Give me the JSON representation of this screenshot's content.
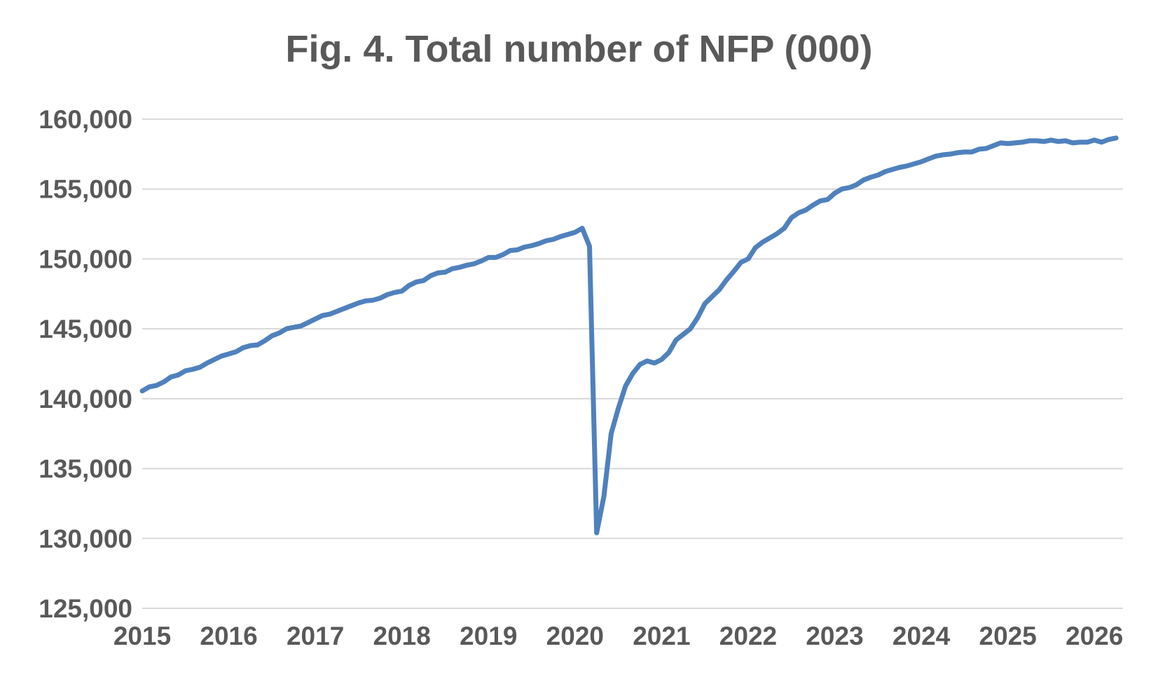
{
  "chart_data": {
    "type": "line",
    "title": "Fig. 4. Total number of NFP (000)",
    "xlabel": "",
    "ylabel": "",
    "ylim": [
      125000,
      160000
    ],
    "xlim": [
      2015,
      2026.33
    ],
    "yticks": [
      125000,
      130000,
      135000,
      140000,
      145000,
      150000,
      155000,
      160000
    ],
    "ytick_labels": [
      "125,000",
      "130,000",
      "135,000",
      "140,000",
      "145,000",
      "150,000",
      "155,000",
      "160,000"
    ],
    "xticks": [
      2015,
      2016,
      2017,
      2018,
      2019,
      2020,
      2021,
      2022,
      2023,
      2024,
      2025,
      2026
    ],
    "xtick_labels": [
      "2015",
      "2016",
      "2017",
      "2018",
      "2019",
      "2020",
      "2021",
      "2022",
      "2023",
      "2024",
      "2025",
      "2026"
    ],
    "grid": true,
    "legend": "none",
    "colors": {
      "line": "#4F81BD",
      "grid": "#D9D9D9",
      "text": "#595959"
    },
    "series": [
      {
        "x": [
          2015.0,
          2015.083,
          2015.167,
          2015.25,
          2015.333,
          2015.417,
          2015.5,
          2015.583,
          2015.667,
          2015.75,
          2015.833,
          2015.917,
          2016.0,
          2016.083,
          2016.167,
          2016.25,
          2016.333,
          2016.417,
          2016.5,
          2016.583,
          2016.667,
          2016.75,
          2016.833,
          2016.917,
          2017.0,
          2017.083,
          2017.167,
          2017.25,
          2017.333,
          2017.417,
          2017.5,
          2017.583,
          2017.667,
          2017.75,
          2017.833,
          2017.917,
          2018.0,
          2018.083,
          2018.167,
          2018.25,
          2018.333,
          2018.417,
          2018.5,
          2018.583,
          2018.667,
          2018.75,
          2018.833,
          2018.917,
          2019.0,
          2019.083,
          2019.167,
          2019.25,
          2019.333,
          2019.417,
          2019.5,
          2019.583,
          2019.667,
          2019.75,
          2019.833,
          2019.917,
          2020.0,
          2020.083,
          2020.167,
          2020.25,
          2020.333,
          2020.417,
          2020.5,
          2020.583,
          2020.667,
          2020.75,
          2020.833,
          2020.917,
          2021.0,
          2021.083,
          2021.167,
          2021.25,
          2021.333,
          2021.417,
          2021.5,
          2021.583,
          2021.667,
          2021.75,
          2021.833,
          2021.917,
          2022.0,
          2022.083,
          2022.167,
          2022.25,
          2022.333,
          2022.417,
          2022.5,
          2022.583,
          2022.667,
          2022.75,
          2022.833,
          2022.917,
          2023.0,
          2023.083,
          2023.167,
          2023.25,
          2023.333,
          2023.417,
          2023.5,
          2023.583,
          2023.667,
          2023.75,
          2023.833,
          2023.917,
          2024.0,
          2024.083,
          2024.167,
          2024.25,
          2024.333,
          2024.417,
          2024.5,
          2024.583,
          2024.667,
          2024.75,
          2024.833,
          2024.917,
          2025.0,
          2025.083,
          2025.167,
          2025.25,
          2025.333,
          2025.417,
          2025.5,
          2025.583,
          2025.667,
          2025.75,
          2025.833,
          2025.917,
          2026.0,
          2026.083,
          2026.167,
          2026.25
        ],
        "y": [
          140550,
          140850,
          140950,
          141200,
          141550,
          141700,
          142000,
          142100,
          142250,
          142550,
          142800,
          143050,
          143200,
          143350,
          143650,
          143800,
          143850,
          144150,
          144500,
          144700,
          145000,
          145100,
          145200,
          145450,
          145700,
          145950,
          146050,
          146250,
          146450,
          146650,
          146850,
          147000,
          147050,
          147200,
          147450,
          147600,
          147700,
          148100,
          148350,
          148450,
          148800,
          149000,
          149050,
          149300,
          149400,
          149550,
          149650,
          149850,
          150100,
          150100,
          150300,
          150600,
          150650,
          150850,
          150950,
          151100,
          151300,
          151400,
          151600,
          151750,
          151900,
          152200,
          150900,
          130400,
          133000,
          137500,
          139300,
          140900,
          141800,
          142450,
          142700,
          142550,
          142800,
          143300,
          144200,
          144600,
          145000,
          145800,
          146800,
          147300,
          147800,
          148500,
          149100,
          149750,
          150000,
          150800,
          151200,
          151500,
          151800,
          152200,
          152950,
          153300,
          153500,
          153850,
          154150,
          154250,
          154700,
          155000,
          155100,
          155300,
          155650,
          155850,
          156000,
          156250,
          156400,
          156550,
          156650,
          156800,
          156950,
          157150,
          157350,
          157450,
          157500,
          157600,
          157650,
          157650,
          157850,
          157900,
          158100,
          158300,
          158250,
          158300,
          158350,
          158450,
          158450,
          158400,
          158500,
          158400,
          158450,
          158300,
          158350,
          158350,
          158500,
          158350,
          158550,
          158650
        ]
      }
    ]
  }
}
